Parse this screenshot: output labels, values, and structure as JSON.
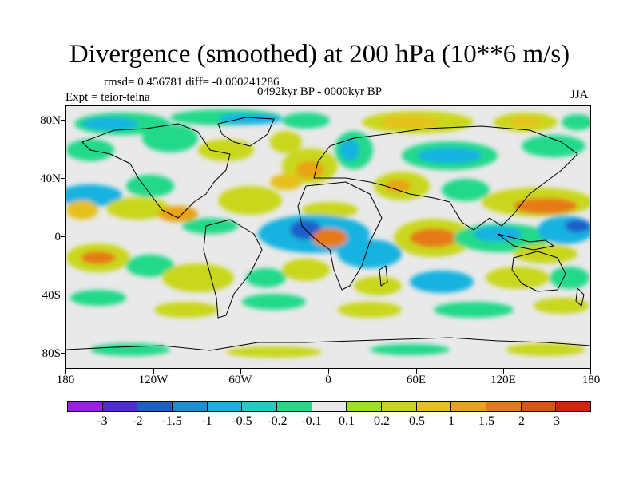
{
  "title": "Divergence (smoothed) at 200 hPa (10**6 m/s)",
  "stats_line": "rmsd= 0.456781  diff= -0.000241286",
  "experiment": "Expt = teior-teina",
  "period": "0492kyr BP - 0000kyr BP",
  "season": "JJA",
  "map": {
    "projection": "cylindrical equidistant",
    "lon_range": [
      -180,
      180
    ],
    "lat_range": [
      -90,
      90
    ],
    "lat_labels": [
      "80N",
      "40N",
      "0",
      "40S",
      "80S"
    ],
    "lon_labels": [
      "180",
      "120W",
      "60W",
      "0",
      "60E",
      "120E",
      "180"
    ],
    "background_color": "#e9e9e9"
  },
  "colorbar": {
    "colors": [
      "#9b1fe8",
      "#4d2bd6",
      "#1d5ec8",
      "#1b8fd6",
      "#18b2e0",
      "#1ccfc0",
      "#22d98a",
      "#e9e9e9",
      "#9ee21d",
      "#c9d71c",
      "#e6c11a",
      "#e8a316",
      "#e57a12",
      "#e0520f",
      "#d6220c"
    ],
    "labels": [
      "-3",
      "-2",
      "-1.5",
      "-1",
      "-0.5",
      "-0.2",
      "-0.1",
      "0.1",
      "0.2",
      "0.5",
      "1",
      "1.5",
      "2",
      "3"
    ]
  }
}
